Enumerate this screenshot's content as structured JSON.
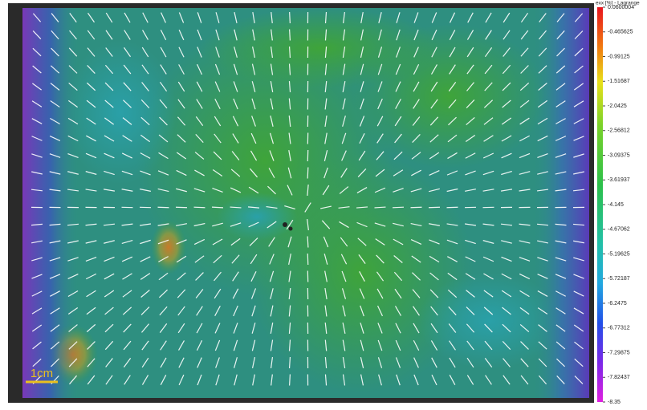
{
  "colorbar": {
    "title": "exx [%] - Lagrange",
    "lim": [
      -8.35,
      0.0600004
    ],
    "ticks": [
      0.0600004,
      -0.465625,
      -0.99125,
      -1.51687,
      -2.0425,
      -2.56812,
      -3.09375,
      -3.61937,
      -4.145,
      -4.67062,
      -5.19625,
      -5.72187,
      -6.2475,
      -6.77312,
      -7.29875,
      -7.82437,
      -8.35
    ]
  },
  "scale_bar": {
    "label": "1cm"
  }
}
